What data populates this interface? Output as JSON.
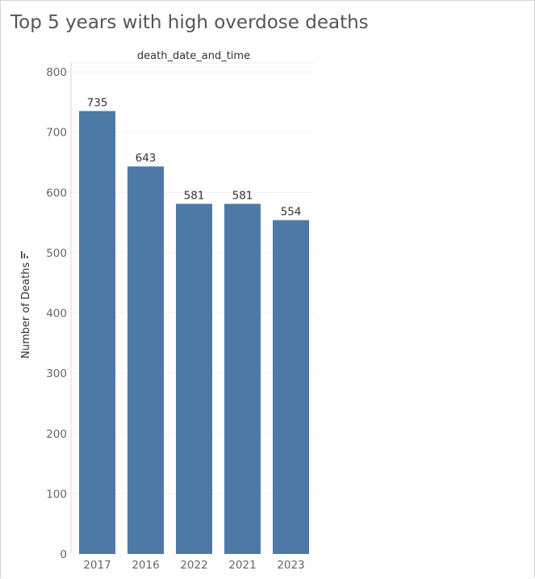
{
  "chart_data": {
    "type": "bar",
    "title": "Top 5 years with high overdose deaths",
    "column_header": "death_date_and_time",
    "ylabel": "Number of Deaths",
    "categories": [
      "2017",
      "2016",
      "2022",
      "2021",
      "2023"
    ],
    "values": [
      735,
      643,
      581,
      581,
      554
    ],
    "ylim": [
      0,
      800
    ],
    "yticks": [
      0,
      100,
      200,
      300,
      400,
      500,
      600,
      700,
      800
    ],
    "bar_color": "#4e79a7",
    "data_labels": true,
    "grid": true,
    "sort_icon": "sort-descending-icon"
  }
}
